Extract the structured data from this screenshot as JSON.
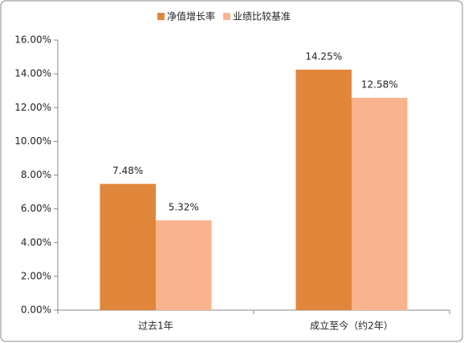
{
  "chart_data": {
    "type": "bar",
    "categories": [
      "过去1年",
      "成立至今（约2年）"
    ],
    "series": [
      {
        "name": "净值增长率",
        "color": "#e0873b",
        "values": [
          7.48,
          14.25
        ],
        "value_labels": [
          "7.48%",
          "14.25%"
        ]
      },
      {
        "name": "业绩比较基准",
        "color": "#f9b48f",
        "values": [
          5.32,
          12.58
        ],
        "value_labels": [
          "5.32%",
          "12.58%"
        ]
      }
    ],
    "ylim": [
      0,
      16
    ],
    "yticks": [
      {
        "value": 0,
        "label": "0.00%"
      },
      {
        "value": 2,
        "label": "2.00%"
      },
      {
        "value": 4,
        "label": "4.00%"
      },
      {
        "value": 6,
        "label": "6.00%"
      },
      {
        "value": 8,
        "label": "8.00%"
      },
      {
        "value": 10,
        "label": "10.00%"
      },
      {
        "value": 12,
        "label": "12.00%"
      },
      {
        "value": 14,
        "label": "14.00%"
      },
      {
        "value": 16,
        "label": "16.00%"
      }
    ],
    "legend": "top"
  }
}
